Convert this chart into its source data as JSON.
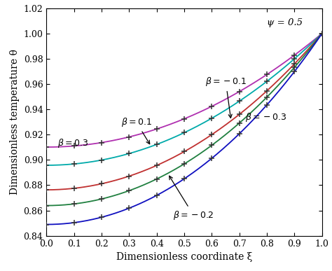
{
  "title": "",
  "xlabel": "Dimensionless coordinate ξ",
  "ylabel": "Dimensionless temperature θ",
  "psi": 0.5,
  "betas": [
    0.3,
    0.1,
    -0.1,
    -0.2,
    -0.3
  ],
  "colors": [
    "#b030b0",
    "#00aaaa",
    "#c03030",
    "#208040",
    "#1010c0"
  ],
  "xlim": [
    0,
    1
  ],
  "ylim": [
    0.84,
    1.02
  ],
  "xticks": [
    0,
    0.1,
    0.2,
    0.3,
    0.4,
    0.5,
    0.6,
    0.7,
    0.8,
    0.9,
    1
  ],
  "yticks": [
    0.84,
    0.86,
    0.88,
    0.9,
    0.92,
    0.94,
    0.96,
    0.98,
    1.0,
    1.02
  ],
  "marker_xi": [
    0.0,
    0.1,
    0.2,
    0.3,
    0.4,
    0.5,
    0.6,
    0.7,
    0.8,
    0.9,
    1.0
  ],
  "annotation_psi": "ψ = 0.5",
  "figsize": [
    4.74,
    3.87
  ],
  "dpi": 100
}
